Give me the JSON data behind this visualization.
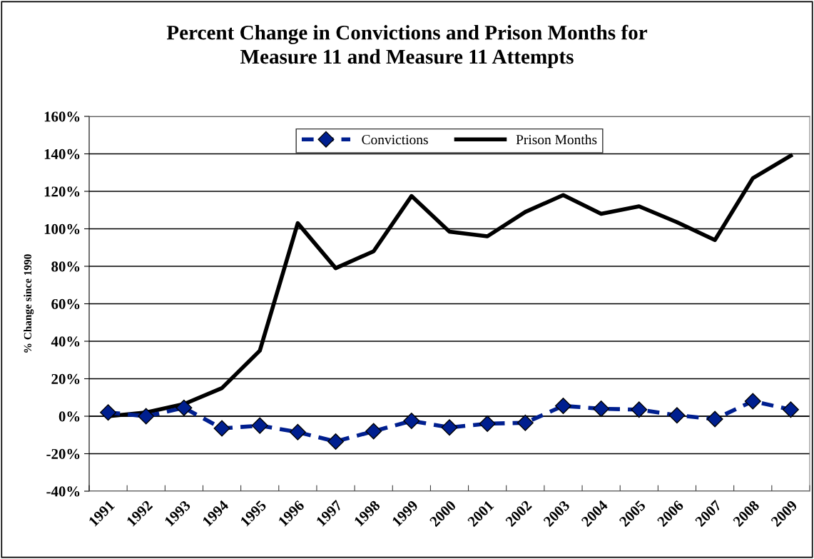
{
  "chart_data": {
    "type": "line",
    "title": "Percent Change in Convictions and Prison Months for\nMeasure 11 and Measure 11 Attempts",
    "ylabel": "% Change since 1990",
    "categories": [
      "1991",
      "1992",
      "1993",
      "1994",
      "1995",
      "1996",
      "1997",
      "1998",
      "1999",
      "2000",
      "2001",
      "2002",
      "2003",
      "2004",
      "2005",
      "2006",
      "2007",
      "2008",
      "2009"
    ],
    "series": [
      {
        "name": "Convictions",
        "color": "#001f8f",
        "marker": "diamond",
        "line_style": "dashed",
        "values": [
          2,
          0,
          4.5,
          -6.5,
          -5,
          -8.5,
          -13.5,
          -8,
          -2.5,
          -6,
          -4,
          -3.5,
          5.5,
          4,
          3.5,
          0.5,
          -1.5,
          8,
          3.5
        ]
      },
      {
        "name": "Prison Months",
        "color": "#000000",
        "marker": "none",
        "line_style": "solid",
        "values": [
          0,
          2,
          6.5,
          15,
          35,
          103,
          79,
          88,
          117.5,
          98.5,
          96,
          109,
          118,
          108,
          112,
          103.5,
          94,
          127,
          139
        ]
      }
    ],
    "ylim": [
      -40,
      160
    ],
    "yticks": [
      {
        "value": -40,
        "label": "-40%"
      },
      {
        "value": -20,
        "label": "-20%"
      },
      {
        "value": 0,
        "label": "0%"
      },
      {
        "value": 20,
        "label": "20%"
      },
      {
        "value": 40,
        "label": "40%"
      },
      {
        "value": 60,
        "label": "60%"
      },
      {
        "value": 80,
        "label": "80%"
      },
      {
        "value": 100,
        "label": "100%"
      },
      {
        "value": 120,
        "label": "120%"
      },
      {
        "value": 140,
        "label": "140%"
      },
      {
        "value": 160,
        "label": "160%"
      }
    ],
    "grid": "y",
    "legend": "top"
  }
}
